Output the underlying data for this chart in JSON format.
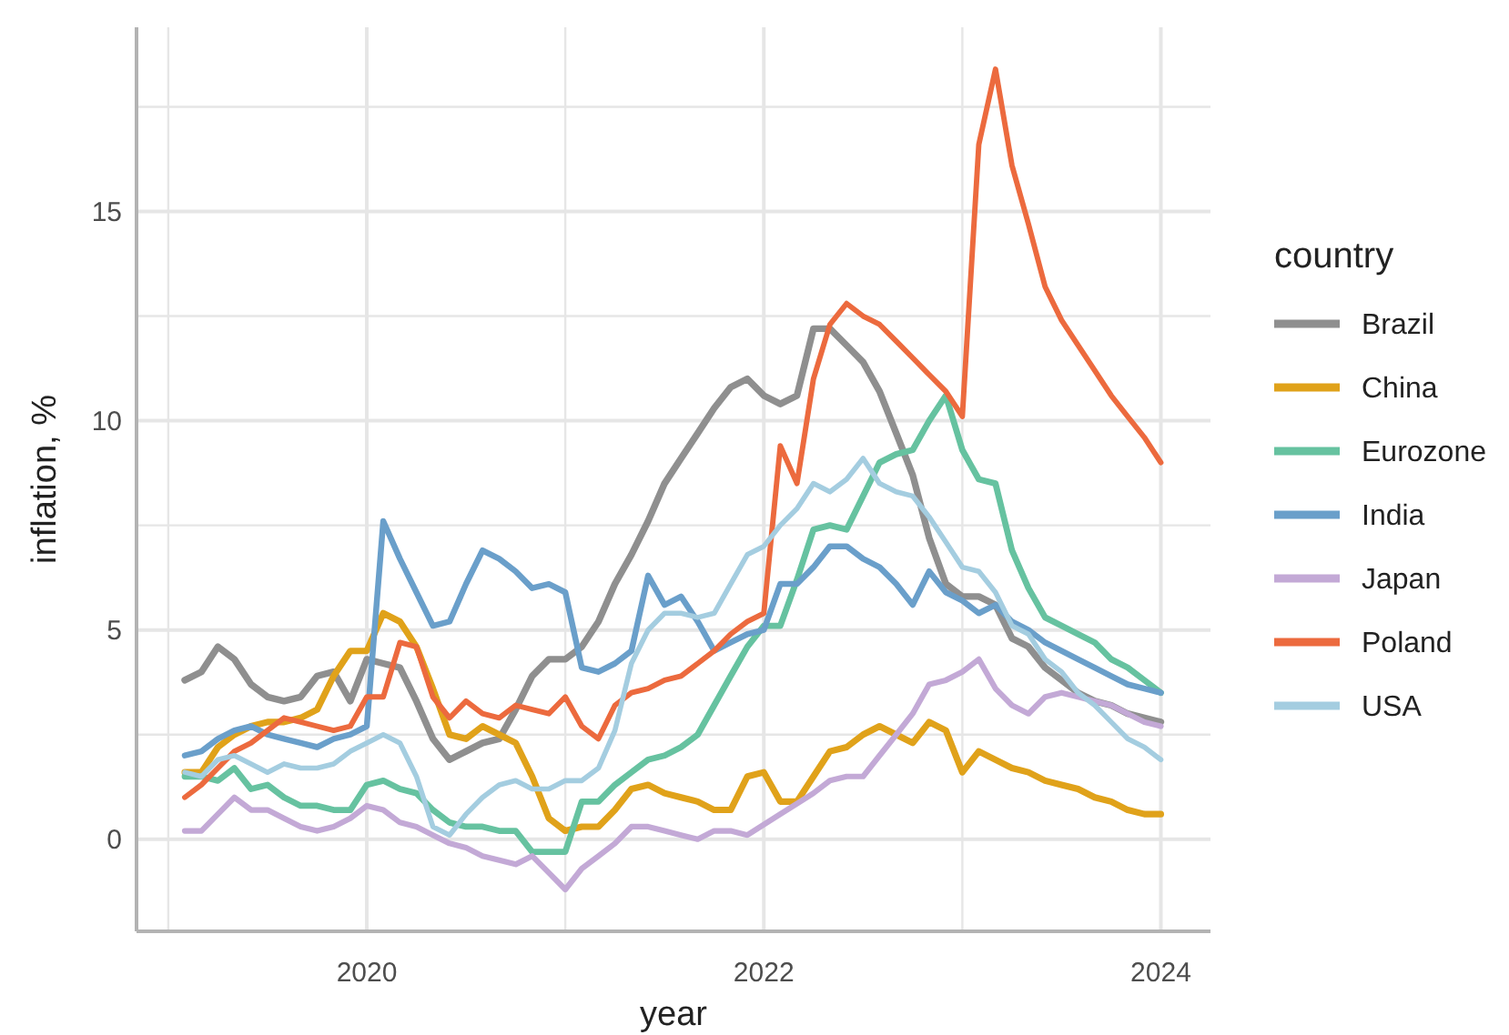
{
  "chart_data": {
    "type": "line",
    "xlabel": "year",
    "ylabel": "inflation, %",
    "legend_title": "country",
    "legend": "right",
    "grid": true,
    "line_style": "solid",
    "xlim": [
      2018.84,
      2024.25
    ],
    "ylim": [
      -2.2,
      19.4
    ],
    "xticks": [
      {
        "value": 2019,
        "label": null
      },
      2020,
      {
        "value": 2021,
        "label": null
      },
      2022,
      {
        "value": 2023,
        "label": null
      },
      2024
    ],
    "yticks": [
      0,
      {
        "value": 2.5,
        "label": null
      },
      5,
      {
        "value": 7.5,
        "label": null
      },
      10,
      {
        "value": 12.5,
        "label": null
      },
      15,
      {
        "value": 17.5,
        "label": null
      }
    ],
    "x": [
      2019.083,
      2019.167,
      2019.25,
      2019.333,
      2019.417,
      2019.5,
      2019.583,
      2019.667,
      2019.75,
      2019.833,
      2019.917,
      2020,
      2020.083,
      2020.167,
      2020.25,
      2020.333,
      2020.417,
      2020.5,
      2020.583,
      2020.667,
      2020.75,
      2020.833,
      2020.917,
      2021,
      2021.083,
      2021.167,
      2021.25,
      2021.333,
      2021.417,
      2021.5,
      2021.583,
      2021.667,
      2021.75,
      2021.833,
      2021.917,
      2022,
      2022.083,
      2022.167,
      2022.25,
      2022.333,
      2022.417,
      2022.5,
      2022.583,
      2022.667,
      2022.75,
      2022.833,
      2022.917,
      2023,
      2023.083,
      2023.167,
      2023.25,
      2023.333,
      2023.417,
      2023.5,
      2023.583,
      2023.667,
      2023.75,
      2023.833,
      2023.917,
      2024
    ],
    "series": [
      {
        "name": "Brazil",
        "color": "#8f8f8f",
        "values": [
          3.8,
          4.0,
          4.6,
          4.3,
          3.7,
          3.4,
          3.3,
          3.4,
          3.9,
          4.0,
          3.3,
          4.3,
          4.2,
          4.1,
          3.3,
          2.4,
          1.9,
          2.1,
          2.3,
          2.4,
          3.1,
          3.9,
          4.3,
          4.3,
          4.6,
          5.2,
          6.1,
          6.8,
          7.6,
          8.5,
          9.1,
          9.7,
          10.3,
          10.8,
          11.0,
          10.6,
          10.4,
          10.6,
          12.2,
          12.2,
          11.8,
          11.4,
          10.7,
          9.7,
          8.7,
          7.2,
          6.1,
          5.8,
          5.8,
          5.6,
          4.8,
          4.6,
          4.1,
          3.8,
          3.5,
          3.3,
          3.2,
          3.0,
          2.9,
          2.8
        ]
      },
      {
        "name": "China",
        "color": "#e0a21a",
        "values": [
          1.6,
          1.6,
          2.2,
          2.5,
          2.7,
          2.8,
          2.8,
          2.9,
          3.1,
          3.9,
          4.5,
          4.5,
          5.4,
          5.2,
          4.6,
          3.6,
          2.5,
          2.4,
          2.7,
          2.5,
          2.3,
          1.5,
          0.5,
          0.2,
          0.3,
          0.3,
          0.7,
          1.2,
          1.3,
          1.1,
          1.0,
          0.9,
          0.7,
          0.7,
          1.5,
          1.6,
          0.9,
          0.9,
          1.5,
          2.1,
          2.2,
          2.5,
          2.7,
          2.5,
          2.3,
          2.8,
          2.6,
          1.6,
          2.1,
          1.9,
          1.7,
          1.6,
          1.4,
          1.3,
          1.2,
          1.0,
          0.9,
          0.7,
          0.6,
          0.6
        ]
      },
      {
        "name": "Eurozone",
        "color": "#66c2a0",
        "values": [
          1.5,
          1.5,
          1.4,
          1.7,
          1.2,
          1.3,
          1.0,
          0.8,
          0.8,
          0.7,
          0.7,
          1.3,
          1.4,
          1.2,
          1.1,
          0.7,
          0.4,
          0.3,
          0.3,
          0.2,
          0.2,
          -0.3,
          -0.3,
          -0.3,
          0.9,
          0.9,
          1.3,
          1.6,
          1.9,
          2.0,
          2.2,
          2.5,
          3.2,
          3.9,
          4.6,
          5.1,
          5.1,
          6.2,
          7.4,
          7.5,
          7.4,
          8.2,
          9.0,
          9.2,
          9.3,
          10.0,
          10.6,
          9.3,
          8.6,
          8.5,
          6.9,
          6.0,
          5.3,
          5.1,
          4.9,
          4.7,
          4.3,
          4.1,
          3.8,
          3.5
        ]
      },
      {
        "name": "India",
        "color": "#6a9fca",
        "values": [
          2.0,
          2.1,
          2.4,
          2.6,
          2.7,
          2.5,
          2.4,
          2.3,
          2.2,
          2.4,
          2.5,
          2.7,
          7.6,
          6.7,
          5.9,
          5.1,
          5.2,
          6.1,
          6.9,
          6.7,
          6.4,
          6.0,
          6.1,
          5.9,
          4.1,
          4.0,
          4.2,
          4.5,
          6.3,
          5.6,
          5.8,
          5.2,
          4.5,
          4.7,
          4.9,
          5.0,
          6.1,
          6.1,
          6.5,
          7.0,
          7.0,
          6.7,
          6.5,
          6.1,
          5.6,
          6.4,
          5.9,
          5.7,
          5.4,
          5.6,
          5.2,
          5.0,
          4.7,
          4.5,
          4.3,
          4.1,
          3.9,
          3.7,
          3.6,
          3.5
        ]
      },
      {
        "name": "Japan",
        "color": "#c3a9d6",
        "values": [
          0.2,
          0.2,
          0.6,
          1.0,
          0.7,
          0.7,
          0.5,
          0.3,
          0.2,
          0.3,
          0.5,
          0.8,
          0.7,
          0.4,
          0.3,
          0.1,
          -0.1,
          -0.2,
          -0.4,
          -0.5,
          -0.6,
          -0.4,
          -0.8,
          -1.2,
          -0.7,
          -0.4,
          -0.1,
          0.3,
          0.3,
          0.2,
          0.1,
          0.0,
          0.2,
          0.2,
          0.1,
          0.35,
          0.6,
          0.85,
          1.1,
          1.4,
          1.5,
          1.5,
          2.0,
          2.5,
          3.0,
          3.7,
          3.8,
          4.0,
          4.3,
          3.6,
          3.2,
          3.0,
          3.4,
          3.5,
          3.4,
          3.3,
          3.2,
          3.0,
          2.8,
          2.7
        ]
      },
      {
        "name": "Poland",
        "color": "#ec6a3e",
        "values": [
          1.0,
          1.3,
          1.7,
          2.1,
          2.3,
          2.6,
          2.9,
          2.8,
          2.7,
          2.6,
          2.7,
          3.4,
          3.4,
          4.7,
          4.6,
          3.4,
          2.9,
          3.3,
          3.0,
          2.9,
          3.2,
          3.1,
          3.0,
          3.4,
          2.7,
          2.4,
          3.2,
          3.5,
          3.6,
          3.8,
          3.9,
          4.2,
          4.5,
          4.9,
          5.2,
          5.4,
          9.4,
          8.5,
          11.0,
          12.3,
          12.8,
          12.5,
          12.3,
          11.9,
          11.5,
          11.1,
          10.7,
          10.1,
          16.6,
          18.4,
          16.1,
          14.7,
          13.2,
          12.4,
          11.8,
          11.2,
          10.6,
          10.1,
          9.6,
          9.0
        ]
      },
      {
        "name": "USA",
        "color": "#a4cde0",
        "values": [
          1.6,
          1.5,
          1.9,
          2.0,
          1.8,
          1.6,
          1.8,
          1.7,
          1.7,
          1.8,
          2.1,
          2.3,
          2.5,
          2.3,
          1.5,
          0.3,
          0.1,
          0.6,
          1.0,
          1.3,
          1.4,
          1.2,
          1.2,
          1.4,
          1.4,
          1.7,
          2.6,
          4.2,
          5.0,
          5.4,
          5.4,
          5.3,
          5.4,
          6.1,
          6.8,
          7.0,
          7.5,
          7.9,
          8.5,
          8.3,
          8.6,
          9.1,
          8.5,
          8.3,
          8.2,
          7.7,
          7.1,
          6.5,
          6.4,
          5.9,
          5.1,
          4.9,
          4.3,
          4.0,
          3.5,
          3.2,
          2.8,
          2.4,
          2.2,
          1.9
        ]
      }
    ]
  }
}
